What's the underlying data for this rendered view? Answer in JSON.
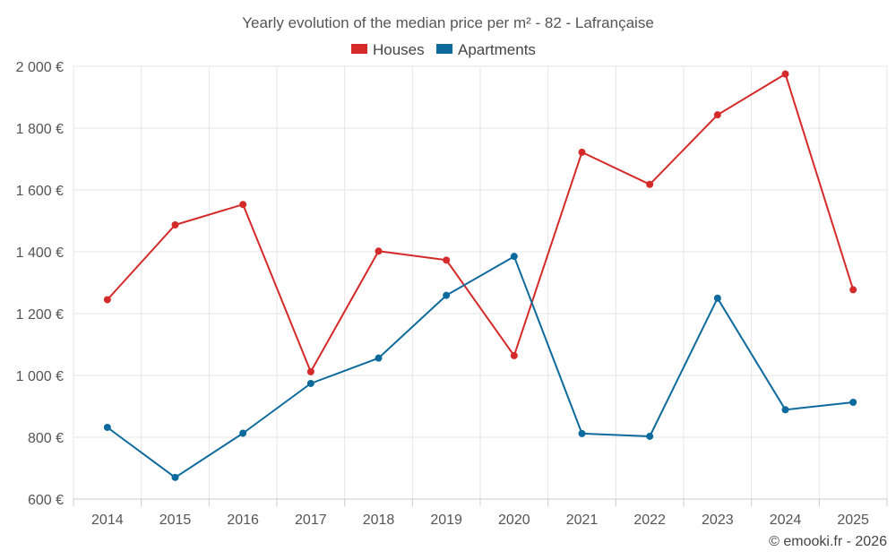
{
  "chart_data": {
    "type": "line",
    "title": "Yearly evolution of the median price per m² - 82 - Lafrançaise",
    "credit": "© emooki.fr - 2026",
    "xlabel": "",
    "ylabel": "",
    "categories": [
      "2014",
      "2015",
      "2016",
      "2017",
      "2018",
      "2019",
      "2020",
      "2021",
      "2022",
      "2023",
      "2024",
      "2025"
    ],
    "ylim": [
      600,
      2000
    ],
    "yticks": [
      600,
      800,
      1000,
      1200,
      1400,
      1600,
      1800,
      2000
    ],
    "ytick_labels": [
      "600 €",
      "800 €",
      "1 000 €",
      "1 200 €",
      "1 400 €",
      "1 600 €",
      "1 800 €",
      "2 000 €"
    ],
    "grid": true,
    "legend_position": "top-center",
    "series": [
      {
        "name": "Houses",
        "color": "#d42a2a",
        "values": [
          1245,
          1487,
          1553,
          1012,
          1402,
          1373,
          1064,
          1722,
          1618,
          1843,
          1975,
          1277
        ]
      },
      {
        "name": "Apartments",
        "color": "#0d6a9c",
        "values": [
          832,
          670,
          813,
          974,
          1056,
          1259,
          1385,
          812,
          803,
          1250,
          889,
          913
        ]
      }
    ]
  }
}
